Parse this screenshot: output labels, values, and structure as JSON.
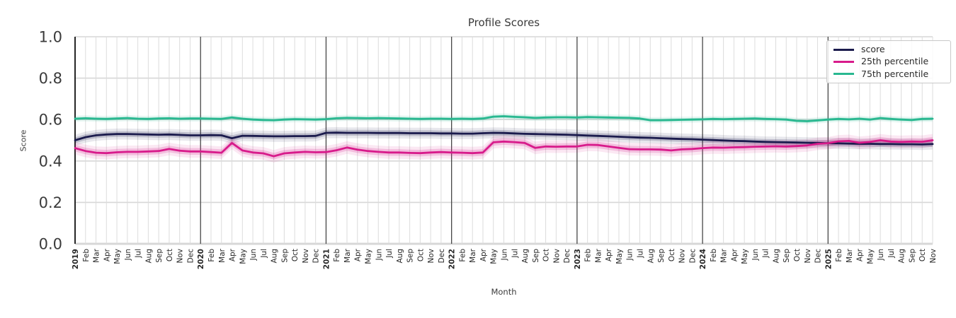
{
  "chart_data": {
    "type": "line",
    "title": "Profile Scores",
    "xlabel": "Month",
    "ylabel": "Score",
    "ylim": [
      0.0,
      1.0
    ],
    "yticks": [
      0.0,
      0.2,
      0.4,
      0.6,
      0.8,
      1.0
    ],
    "grid": true,
    "legend_position": "upper right",
    "x_labels": [
      "2019",
      "Feb",
      "Mar",
      "Apr",
      "May",
      "Jun",
      "Jul",
      "Aug",
      "Sep",
      "Oct",
      "Nov",
      "Dec",
      "2020",
      "Feb",
      "Mar",
      "Apr",
      "May",
      "Jun",
      "Jul",
      "Aug",
      "Sep",
      "Oct",
      "Nov",
      "Dec",
      "2021",
      "Feb",
      "Mar",
      "Apr",
      "May",
      "Jun",
      "Jul",
      "Aug",
      "Sep",
      "Oct",
      "Nov",
      "Dec",
      "2022",
      "Feb",
      "Mar",
      "Apr",
      "May",
      "Jun",
      "Jul",
      "Aug",
      "Sep",
      "Oct",
      "Nov",
      "Dec",
      "2023",
      "Feb",
      "Mar",
      "Apr",
      "May",
      "Jun",
      "Jul",
      "Aug",
      "Sep",
      "Oct",
      "Nov",
      "Dec",
      "2024",
      "Feb",
      "Mar",
      "Apr",
      "May",
      "Jun",
      "Jul",
      "Aug",
      "Sep",
      "Oct",
      "Nov",
      "Dec",
      "2025",
      "Feb",
      "Mar",
      "Apr",
      "May",
      "Jun",
      "Jul",
      "Aug",
      "Sep",
      "Oct",
      "Nov"
    ],
    "series": [
      {
        "name": "score",
        "color": "#1b1b4d",
        "band_halfwidth": 0.014,
        "values": [
          0.5,
          0.515,
          0.524,
          0.528,
          0.53,
          0.53,
          0.529,
          0.528,
          0.527,
          0.528,
          0.526,
          0.524,
          0.524,
          0.525,
          0.524,
          0.51,
          0.522,
          0.521,
          0.52,
          0.519,
          0.519,
          0.52,
          0.52,
          0.521,
          0.536,
          0.537,
          0.536,
          0.536,
          0.536,
          0.535,
          0.535,
          0.535,
          0.534,
          0.534,
          0.534,
          0.533,
          0.533,
          0.532,
          0.532,
          0.534,
          0.536,
          0.535,
          0.533,
          0.531,
          0.53,
          0.529,
          0.528,
          0.527,
          0.525,
          0.523,
          0.521,
          0.519,
          0.517,
          0.515,
          0.513,
          0.512,
          0.51,
          0.508,
          0.506,
          0.505,
          0.503,
          0.501,
          0.499,
          0.497,
          0.496,
          0.494,
          0.492,
          0.491,
          0.49,
          0.489,
          0.488,
          0.487,
          0.486,
          0.485,
          0.484,
          0.483,
          0.483,
          0.482,
          0.482,
          0.481,
          0.481,
          0.48,
          0.482
        ]
      },
      {
        "name": "25th percentile",
        "color": "#d81b8b",
        "band_halfwidth": 0.016,
        "values": [
          0.462,
          0.448,
          0.44,
          0.438,
          0.442,
          0.444,
          0.444,
          0.446,
          0.448,
          0.458,
          0.45,
          0.446,
          0.446,
          0.443,
          0.44,
          0.487,
          0.451,
          0.441,
          0.437,
          0.423,
          0.437,
          0.441,
          0.444,
          0.442,
          0.443,
          0.452,
          0.465,
          0.455,
          0.448,
          0.444,
          0.441,
          0.441,
          0.439,
          0.438,
          0.441,
          0.443,
          0.441,
          0.44,
          0.438,
          0.441,
          0.49,
          0.494,
          0.491,
          0.487,
          0.463,
          0.47,
          0.469,
          0.47,
          0.47,
          0.478,
          0.477,
          0.47,
          0.463,
          0.457,
          0.456,
          0.456,
          0.455,
          0.451,
          0.456,
          0.458,
          0.462,
          0.465,
          0.464,
          0.466,
          0.467,
          0.469,
          0.47,
          0.471,
          0.47,
          0.472,
          0.475,
          0.483,
          0.486,
          0.495,
          0.497,
          0.488,
          0.492,
          0.5,
          0.494,
          0.492,
          0.494,
          0.493,
          0.5
        ]
      },
      {
        "name": "75th percentile",
        "color": "#29b890",
        "band_halfwidth": 0.008,
        "values": [
          0.604,
          0.606,
          0.604,
          0.603,
          0.605,
          0.607,
          0.604,
          0.603,
          0.605,
          0.606,
          0.604,
          0.605,
          0.605,
          0.604,
          0.603,
          0.61,
          0.604,
          0.6,
          0.598,
          0.597,
          0.6,
          0.602,
          0.601,
          0.6,
          0.602,
          0.606,
          0.608,
          0.607,
          0.606,
          0.607,
          0.606,
          0.605,
          0.604,
          0.603,
          0.604,
          0.604,
          0.603,
          0.604,
          0.603,
          0.605,
          0.614,
          0.616,
          0.613,
          0.611,
          0.608,
          0.61,
          0.611,
          0.611,
          0.61,
          0.612,
          0.611,
          0.61,
          0.609,
          0.608,
          0.605,
          0.597,
          0.597,
          0.598,
          0.599,
          0.6,
          0.601,
          0.603,
          0.602,
          0.603,
          0.604,
          0.605,
          0.603,
          0.602,
          0.6,
          0.594,
          0.592,
          0.596,
          0.6,
          0.603,
          0.601,
          0.604,
          0.6,
          0.607,
          0.603,
          0.6,
          0.598,
          0.603,
          0.604
        ]
      }
    ]
  }
}
